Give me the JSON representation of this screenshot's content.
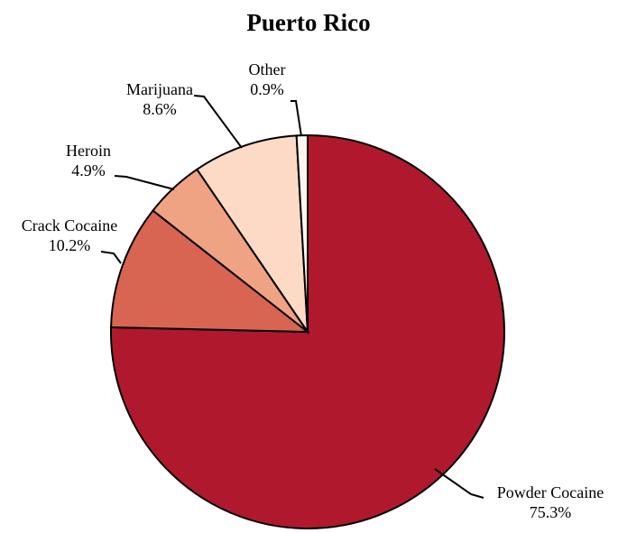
{
  "chart_data": {
    "type": "pie",
    "title": "Puerto Rico",
    "start_angle_deg": 0,
    "direction": "clockwise",
    "slices": [
      {
        "label": "Powder Cocaine",
        "value": 75.3,
        "value_label": "75.3%",
        "color": "#B0192D"
      },
      {
        "label": "Crack Cocaine",
        "value": 10.2,
        "value_label": "10.2%",
        "color": "#D86452"
      },
      {
        "label": "Heroin",
        "value": 4.9,
        "value_label": "4.9%",
        "color": "#F0A382"
      },
      {
        "label": "Marijuana",
        "value": 8.6,
        "value_label": "8.6%",
        "color": "#FCDAC6"
      },
      {
        "label": "Other",
        "value": 0.9,
        "value_label": "0.9%",
        "color": "#FFF5F0"
      }
    ]
  }
}
